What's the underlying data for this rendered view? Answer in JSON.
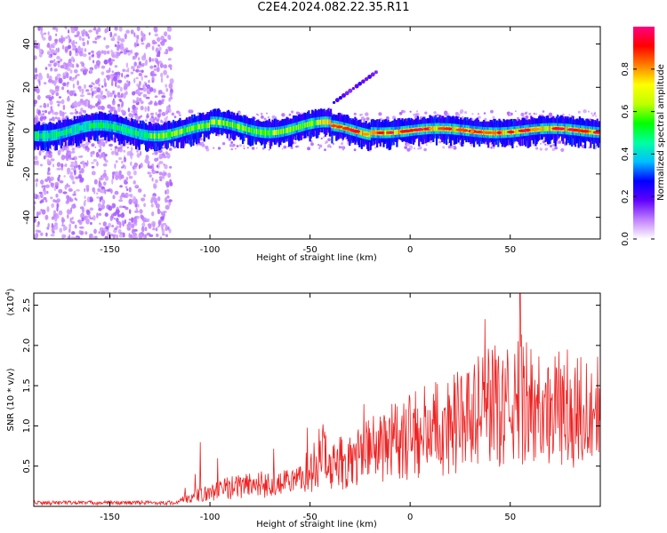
{
  "title": "C2E4.2024.082.22.35.R11",
  "chart_data": [
    {
      "type": "heatmap",
      "name": "spectrogram",
      "xlabel": "Height of straight line (km)",
      "ylabel": "Frequency (Hz)",
      "xlim": [
        -188,
        95
      ],
      "ylim": [
        -50,
        48
      ],
      "xticks": [
        -150,
        -100,
        -50,
        0,
        50
      ],
      "yticks": [
        -40,
        -20,
        0,
        20,
        40
      ],
      "ridge_frequency_hz": 0,
      "noisy_region_x": [
        -188,
        -125
      ],
      "feature_line": {
        "x": [
          -38,
          -17
        ],
        "y": [
          13,
          27
        ]
      },
      "colorbar": {
        "label": "Normalized spectral amplitude",
        "range": [
          0.0,
          1.0
        ],
        "ticks": [
          "0.0",
          "0.2",
          "0.4",
          "0.6",
          "0.8"
        ],
        "colors": [
          "#ffffff",
          "#c080ff",
          "#6000ff",
          "#0000ff",
          "#00c0ff",
          "#00ffa0",
          "#00ff00",
          "#c0ff00",
          "#ffff00",
          "#ff8000",
          "#ff0000",
          "#ff0080"
        ]
      }
    },
    {
      "type": "line",
      "name": "snr",
      "xlabel": "Height of straight line (km)",
      "ylabel": "SNR (10 * v/v)",
      "ylabel_multiplier": "(x10",
      "ylabel_exponent": "4",
      "xlim": [
        -188,
        95
      ],
      "ylim": [
        0,
        2.65
      ],
      "xticks": [
        -150,
        -100,
        -50,
        0,
        50
      ],
      "yticks": [
        "0.5",
        "1.0",
        "1.5",
        "2.0",
        "2.5"
      ],
      "color": "#ee2222",
      "envelope": {
        "x": [
          -188,
          -120,
          -110,
          -90,
          -80,
          -60,
          -50,
          -45,
          -40,
          -30,
          -20,
          -10,
          0,
          10,
          20,
          30,
          40,
          50,
          55,
          60,
          70,
          80,
          90,
          95
        ],
        "y": [
          0.04,
          0.04,
          0.12,
          0.25,
          0.3,
          0.3,
          0.4,
          0.75,
          0.55,
          0.6,
          0.75,
          0.85,
          0.95,
          1.05,
          1.1,
          1.2,
          1.35,
          1.3,
          1.45,
          1.35,
          1.3,
          1.3,
          1.3,
          1.3
        ]
      }
    }
  ]
}
